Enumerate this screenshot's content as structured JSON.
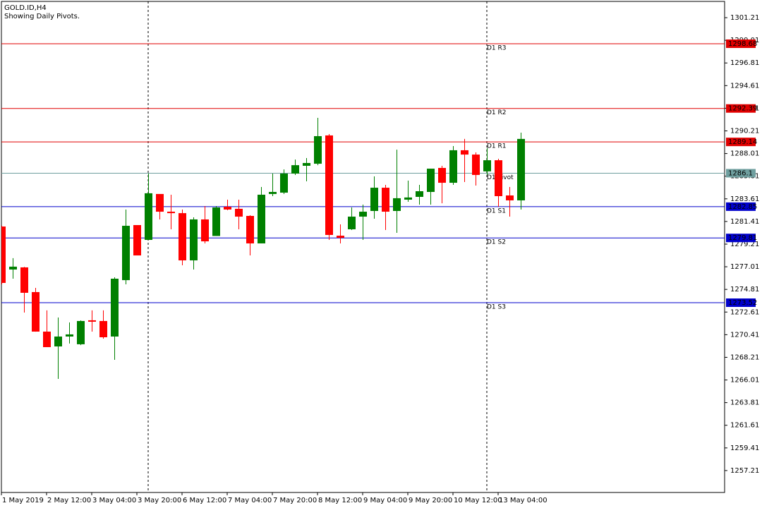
{
  "chart_data": {
    "type": "candlestick",
    "title": "GOLD.ID,H4",
    "subtitle": "Showing Daily Pivots.",
    "categories": [
      "1 May 2019",
      null,
      null,
      null,
      "2 May 12:00",
      null,
      null,
      null,
      "3 May 04:00",
      null,
      null,
      null,
      "3 May 20:00",
      null,
      null,
      null,
      "6 May 12:00",
      null,
      null,
      null,
      "7 May 04:00",
      null,
      null,
      null,
      "7 May 20:00",
      null,
      null,
      null,
      "8 May 12:00",
      null,
      null,
      null,
      "9 May 04:00",
      null,
      null,
      null,
      "9 May 20:00",
      null,
      null,
      null,
      "10 May 12:00",
      null,
      null,
      null,
      "13 May 04:00",
      null,
      null
    ],
    "open": [
      1280.92,
      1276.74,
      1276.95,
      1274.55,
      1270.71,
      1269.27,
      1270.23,
      1269.48,
      1271.81,
      1271.74,
      1270.23,
      1275.71,
      1281.06,
      1279.62,
      1284.08,
      1282.36,
      1282.22,
      1277.63,
      1281.61,
      1280.0,
      1282.84,
      1282.64,
      1281.95,
      1279.28,
      1284.08,
      1284.21,
      1286.06,
      1286.82,
      1287.02,
      1289.77,
      1280.03,
      1280.65,
      1281.88,
      1282.43,
      1284.69,
      1282.43,
      1283.53,
      1283.8,
      1284.28,
      1286.61,
      1285.17,
      1288.33,
      1287.91,
      1286.28,
      1287.36,
      1283.94,
      1283.46
    ],
    "high": [
      1281.0,
      1277.85,
      1277.0,
      1274.96,
      1272.77,
      1272.08,
      1271.6,
      1271.8,
      1272.77,
      1272.77,
      1275.99,
      1282.57,
      1281.06,
      1286.06,
      1284.08,
      1284.01,
      1282.57,
      1281.81,
      1282.91,
      1282.91,
      1283.53,
      1283.53,
      1282.02,
      1284.76,
      1286.06,
      1286.47,
      1287.43,
      1287.57,
      1291.48,
      1289.9,
      1281.13,
      1282.77,
      1283.05,
      1285.79,
      1284.97,
      1288.39,
      1285.38,
      1284.97,
      1286.54,
      1286.82,
      1288.74,
      1289.43,
      1288.12,
      1288.53,
      1287.5,
      1284.76,
      1290.04
    ],
    "low": [
      1275.3,
      1275.85,
      1272.56,
      1270.7,
      1269.2,
      1266.12,
      1269.55,
      1269.4,
      1270.71,
      1270.02,
      1267.97,
      1275.3,
      1278.11,
      1279.62,
      1281.61,
      1280.65,
      1277.15,
      1276.74,
      1279.28,
      1280.0,
      1282.5,
      1280.65,
      1278.11,
      1279.28,
      1283.87,
      1284.08,
      1285.93,
      1285.31,
      1286.88,
      1279.62,
      1279.28,
      1280.58,
      1279.62,
      1281.68,
      1280.58,
      1280.31,
      1283.32,
      1283.05,
      1283.05,
      1283.18,
      1284.97,
      1285.24,
      1284.9,
      1285.93,
      1282.84,
      1281.88,
      1282.57
    ],
    "close": [
      1275.44,
      1277.02,
      1274.48,
      1270.71,
      1269.2,
      1270.23,
      1270.44,
      1271.74,
      1271.67,
      1270.16,
      1275.85,
      1280.99,
      1278.11,
      1284.15,
      1282.36,
      1282.22,
      1277.63,
      1281.61,
      1279.48,
      1282.77,
      1282.57,
      1281.88,
      1279.28,
      1284.01,
      1284.28,
      1286.06,
      1286.88,
      1287.09,
      1289.7,
      1280.1,
      1279.82,
      1281.88,
      1282.36,
      1284.69,
      1282.36,
      1283.67,
      1283.74,
      1284.35,
      1286.54,
      1285.17,
      1288.33,
      1287.91,
      1285.93,
      1287.36,
      1283.87,
      1283.46,
      1289.43
    ],
    "up_color": "#008000",
    "down_color": "#ff0000",
    "levels": [
      {
        "name": "D1 R3",
        "value": 1298.68,
        "color": "#e00000"
      },
      {
        "name": "D1 R2",
        "value": 1292.39,
        "color": "#e00000"
      },
      {
        "name": "D1 R1",
        "value": 1289.14,
        "color": "#e00000"
      },
      {
        "name": "D1 Pivot",
        "value": 1286.1,
        "color": "#6f9f9f"
      },
      {
        "name": "D1 S1",
        "value": 1282.85,
        "color": "#0000cc"
      },
      {
        "name": "D1 S2",
        "value": 1279.81,
        "color": "#0000cc"
      },
      {
        "name": "D1 S3",
        "value": 1273.52,
        "color": "#0000cc"
      }
    ],
    "ylim": [
      1255.08,
      1302.79
    ],
    "yticks": [
      1301.21,
      1299.01,
      1296.81,
      1294.61,
      1292.41,
      1290.21,
      1288.01,
      1285.81,
      1283.61,
      1281.41,
      1279.21,
      1277.01,
      1274.81,
      1272.61,
      1270.41,
      1268.21,
      1266.01,
      1263.81,
      1261.61,
      1259.41,
      1257.21
    ]
  }
}
